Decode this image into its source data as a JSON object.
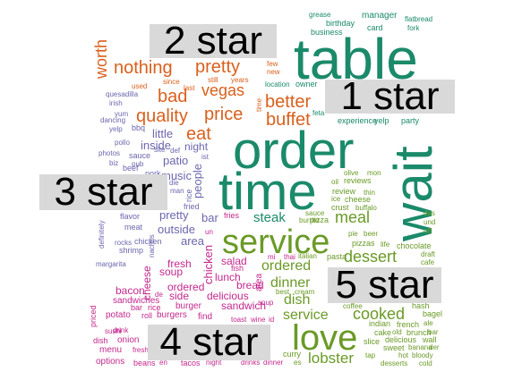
{
  "colors": {
    "star1": "#1a8a6a",
    "star2": "#d9601c",
    "star3": "#6b66ad",
    "star4": "#c3288d",
    "star5": "#6a9a26",
    "banner_bg": "#d9d9d9"
  },
  "groups": {
    "star1": "1 star",
    "star2": "2 star",
    "star3": "3 star",
    "star4": "4 star",
    "star5": "5 star"
  },
  "words": {
    "table": "table",
    "wait": "wait",
    "order": "order",
    "time": "time",
    "manager": "manager",
    "card": "card",
    "flatbread": "flatbread",
    "fork": "fork",
    "grease": "grease",
    "birthday": "birthday",
    "business": "business",
    "owner": "owner",
    "location": "location",
    "feta": "feta",
    "experience": "experience",
    "yelp1": "yelp",
    "party": "party",
    "nothing": "nothing",
    "pretty2": "pretty",
    "worth": "worth",
    "bad": "bad",
    "vegas": "vegas",
    "quality": "quality",
    "price": "price",
    "better": "better",
    "buffet": "buffet",
    "eat": "eat",
    "few": "few",
    "new": "new",
    "since": "since",
    "last": "last",
    "still": "still",
    "years": "years",
    "used": "used",
    "time2": "time",
    "little": "little",
    "inside": "inside",
    "night": "night",
    "patio": "patio",
    "people": "people",
    "pretty3": "pretty",
    "music": "music",
    "outside": "outside",
    "area3": "area",
    "bar": "bar",
    "quesadilla": "quesadilla",
    "irish": "irish",
    "yum": "yum",
    "dancing": "dancing",
    "bbq": "bbq",
    "yelp3": "yelp",
    "pollo": "pollo",
    "photos": "photos",
    "biz": "biz",
    "sauce3": "sauce",
    "pub": "pub",
    "beef": "beef",
    "pork": "pork",
    "fried": "fried",
    "flavor": "flavor",
    "meat": "meat",
    "shrimp": "shrimp",
    "chicken3": "chicken",
    "margarita": "margarita",
    "rocks": "rocks",
    "definitely": "definitely",
    "nachos": "nachos",
    "rice3": "rice",
    "man": "man",
    "die": "die",
    "select": "select",
    "site": "site",
    "def": "def",
    "ist": "ist",
    "service1": "service",
    "steak": "steak",
    "meal": "meal",
    "dessert": "dessert",
    "ordered5": "ordered",
    "dinner5": "dinner",
    "dish5": "dish",
    "service5": "service",
    "love": "love",
    "cooked": "cooked",
    "lobster": "lobster",
    "reviews": "reviews",
    "review": "review",
    "cheese5": "cheese",
    "crust": "crust",
    "buffalo": "buffalo",
    "ice": "ice",
    "thin": "thin",
    "pizzas": "pizzas",
    "pizza": "pizza",
    "sauce5": "sauce",
    "burrito": "burrito",
    "italian": "italian",
    "pasta": "pasta",
    "chocolate": "chocolate",
    "draft": "draft",
    "cafe": "cafe",
    "life": "life",
    "beer": "beer",
    "pie": "pie",
    "das": "das",
    "und": "und",
    "off": "off",
    "olive": "olive",
    "mon": "mon",
    "oil": "oil",
    "coffee": "coffee",
    "hash": "hash",
    "bagel": "bagel",
    "french": "french",
    "ale": "ale",
    "bar5": "bar",
    "indian": "indian",
    "cake": "cake",
    "old": "old",
    "brunch": "brunch",
    "slice": "slice",
    "delicious5": "delicious",
    "wall": "wall",
    "sweet": "sweet",
    "banana": "banana",
    "der": "der",
    "tap": "tap",
    "hot": "hot",
    "bloody": "bloody",
    "desserts": "desserts",
    "cold": "cold",
    "curry": "curry",
    "es": "es",
    "best": "best",
    "cream": "cream",
    "fries": "fries",
    "thai": "thai",
    "mi": "mi",
    "fish": "fish",
    "sushi": "sushi",
    "un": "un",
    "fresh": "fresh",
    "chicken4": "chicken",
    "salad": "salad",
    "soup": "soup",
    "lunch": "lunch",
    "bread": "bread",
    "cheese4": "cheese",
    "side": "side",
    "delicious4": "delicious",
    "sandwich": "sandwich",
    "ordered4": "ordered",
    "area4": "area",
    "bacon": "bacon",
    "sandwiches": "sandwiches",
    "burgers": "burgers",
    "burger": "burger",
    "find": "find",
    "potato": "potato",
    "roll": "roll",
    "menu": "menu",
    "onion": "onion",
    "options": "options",
    "beans": "beans",
    "tacos": "tacos",
    "night4": "night",
    "drinks": "drinks",
    "dinner4": "dinner",
    "priced": "priced",
    "dish4": "dish",
    "drink": "drink",
    "bar4": "bar",
    "rice4": "rice",
    "de": "de",
    "ist4": "ist",
    "toast": "toast",
    "wine": "wine",
    "id": "id",
    "pm": "pm",
    "en": "en",
    "fresh4b": "fresh",
    "est": "est",
    "sweet4": "sweet",
    "et": "et",
    "le": "le",
    "soup4": "soup",
    "sauce4": "sauce",
    "plus": "plus"
  }
}
